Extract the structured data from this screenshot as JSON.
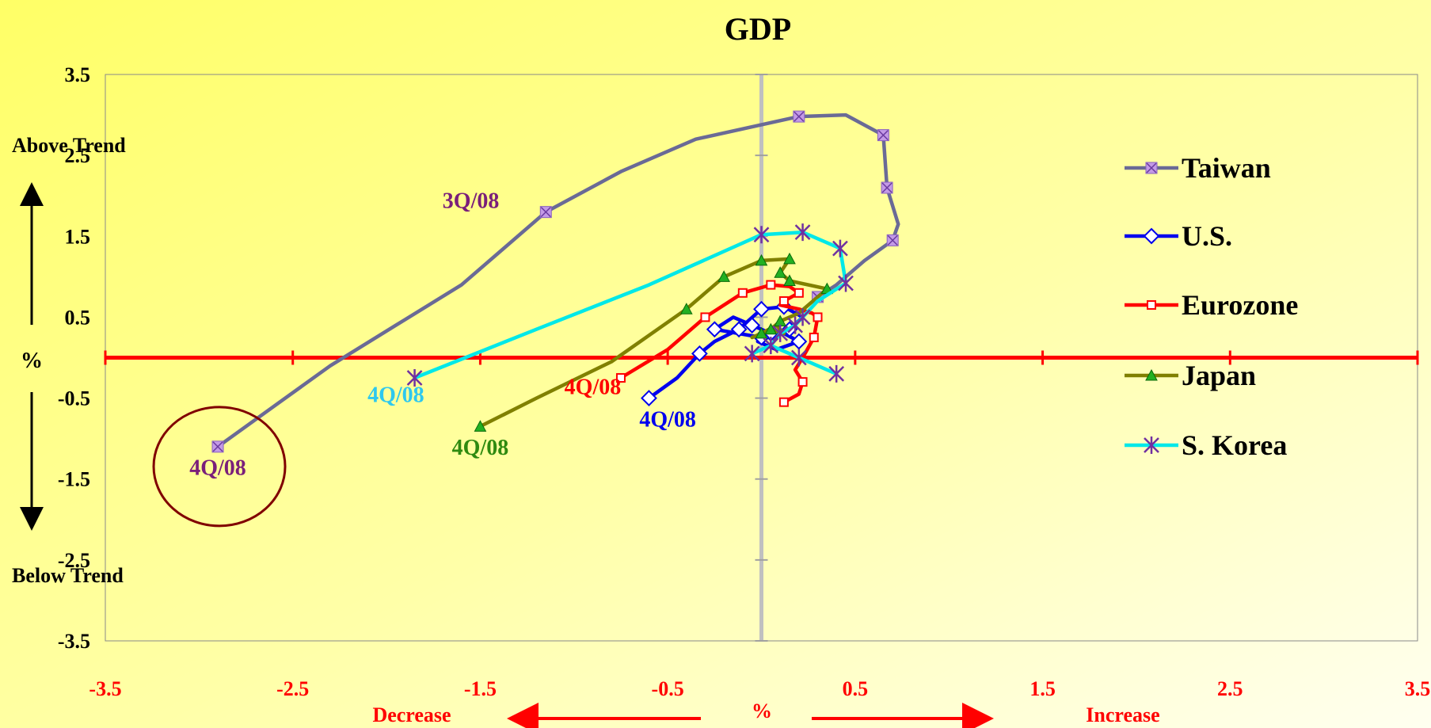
{
  "chart_data": {
    "type": "line",
    "title": "GDP",
    "xlim": [
      -3.5,
      3.5
    ],
    "ylim": [
      -3.5,
      3.5
    ],
    "x_ticks": [
      "-3.5",
      "-2.5",
      "-1.5",
      "-0.5",
      "0.5",
      "1.5",
      "2.5",
      "3.5"
    ],
    "y_ticks": [
      "3.5",
      "2.5",
      "1.5",
      "0.5",
      "-0.5",
      "-1.5",
      "-2.5",
      "-3.5"
    ],
    "xlabel": "%",
    "ylabel": "%",
    "x_decrease_label": "Decrease",
    "x_increase_label": "Increase",
    "y_above_label": "Above Trend",
    "y_below_label": "Below Trend",
    "legend_position": "right",
    "series": [
      {
        "name": "Taiwan",
        "color": "#6a6a96",
        "marker": "square-x",
        "marker_color": "#c39ae6",
        "x": [
          -2.9,
          -2.6,
          -2.3,
          -1.95,
          -1.6,
          -1.15,
          -0.75,
          -0.35,
          0.2,
          0.45,
          0.65,
          0.67,
          0.73,
          0.7,
          0.55,
          0.4,
          0.3
        ],
        "y": [
          -1.1,
          -0.6,
          -0.1,
          0.4,
          0.9,
          1.8,
          2.3,
          2.7,
          2.98,
          3.0,
          2.75,
          2.1,
          1.65,
          1.45,
          1.2,
          0.9,
          0.75
        ],
        "markers": [
          0,
          5,
          8,
          10,
          11,
          13,
          16
        ]
      },
      {
        "name": "U.S.",
        "color": "#0000ee",
        "marker": "diamond",
        "marker_color": "#ffffff",
        "x": [
          -0.6,
          -0.45,
          -0.33,
          -0.25,
          -0.12,
          0.0,
          0.12,
          0.22,
          0.15,
          0.05,
          -0.05,
          -0.15,
          -0.25,
          0.0,
          0.12,
          0.2,
          0.08,
          -0.02
        ],
        "y": [
          -0.5,
          -0.25,
          0.05,
          0.2,
          0.35,
          0.6,
          0.63,
          0.5,
          0.35,
          0.3,
          0.4,
          0.5,
          0.35,
          0.25,
          0.3,
          0.2,
          0.1,
          0.2
        ],
        "markers": [
          0,
          2,
          4,
          5,
          6,
          8,
          9,
          10,
          12,
          13,
          15
        ]
      },
      {
        "name": "Eurozone",
        "color": "#ff0000",
        "marker": "square",
        "marker_color": "#ffffff",
        "x": [
          -0.75,
          -0.5,
          -0.3,
          -0.1,
          0.05,
          0.15,
          0.2,
          0.12,
          0.1,
          0.2,
          0.27,
          0.3,
          0.28,
          0.22,
          0.18,
          0.22,
          0.2,
          0.12
        ],
        "y": [
          -0.25,
          0.1,
          0.5,
          0.8,
          0.9,
          0.88,
          0.8,
          0.7,
          0.65,
          0.6,
          0.55,
          0.5,
          0.25,
          0.0,
          -0.15,
          -0.3,
          -0.45,
          -0.55
        ],
        "markers": [
          0,
          2,
          3,
          4,
          6,
          7,
          11,
          12,
          15,
          17
        ]
      },
      {
        "name": "Japan",
        "color": "#808000",
        "marker": "triangle",
        "marker_color": "#22b022",
        "x": [
          -1.5,
          -1.2,
          -0.8,
          -0.4,
          -0.2,
          0.0,
          0.15,
          0.1,
          0.15,
          0.35,
          0.3,
          0.2,
          0.1,
          0.05,
          0.12,
          0.08,
          0.0,
          -0.05
        ],
        "y": [
          -0.85,
          -0.5,
          -0.05,
          0.6,
          1.0,
          1.2,
          1.22,
          1.05,
          0.95,
          0.85,
          0.75,
          0.55,
          0.45,
          0.35,
          0.3,
          0.4,
          0.3,
          0.25
        ],
        "markers": [
          0,
          3,
          4,
          5,
          6,
          7,
          8,
          9,
          12,
          13,
          16
        ]
      },
      {
        "name": "S. Korea",
        "color": "#00e8e8",
        "marker": "star",
        "marker_color": "#7030a0",
        "x": [
          -1.85,
          -1.2,
          -0.6,
          0.0,
          0.22,
          0.42,
          0.45,
          0.3,
          0.22,
          0.18,
          0.1,
          0.05,
          -0.05,
          0.05,
          0.2,
          0.4
        ],
        "y": [
          -0.25,
          0.35,
          0.9,
          1.52,
          1.55,
          1.35,
          0.92,
          0.7,
          0.5,
          0.4,
          0.3,
          0.15,
          0.05,
          0.15,
          0.0,
          -0.2
        ],
        "markers": [
          0,
          3,
          4,
          5,
          6,
          8,
          9,
          10,
          11,
          12,
          14,
          15
        ]
      }
    ],
    "annotations": [
      {
        "text": "3Q/08",
        "x": -1.55,
        "y": 1.85,
        "color": "#7a1f7a"
      },
      {
        "text": "4Q/08",
        "x": -2.9,
        "y": -1.45,
        "color": "#7a1f7a"
      },
      {
        "text": "4Q/08",
        "x": -1.95,
        "y": -0.55,
        "color": "#2ec8ee"
      },
      {
        "text": "4Q/08",
        "x": -1.5,
        "y": -1.2,
        "color": "#2f8a10"
      },
      {
        "text": "4Q/08",
        "x": -0.9,
        "y": -0.45,
        "color": "#ff0000"
      },
      {
        "text": "4Q/08",
        "x": -0.5,
        "y": -0.85,
        "color": "#0000ee"
      }
    ]
  }
}
